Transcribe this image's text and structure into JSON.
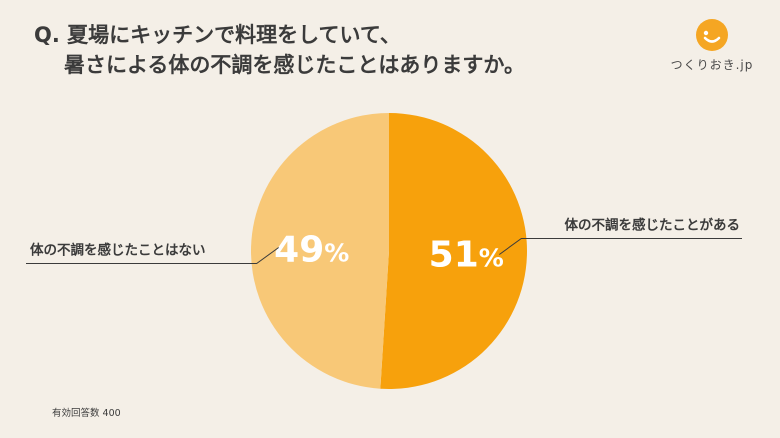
{
  "title": {
    "line1": "Q. 夏場にキッチンで料理をしていて、",
    "line2": "暑さによる体の不調を感じたことはありますか。"
  },
  "logo": {
    "text": "つくりおき.jp",
    "icon": "smile-face-icon",
    "color": "#f5a623"
  },
  "footnote": "有効回答数 400",
  "chart_data": {
    "type": "pie",
    "title": "Q. 夏場にキッチンで料理をしていて、暑さによる体の不調を感じたことはありますか。",
    "slices": [
      {
        "label": "体の不調を感じたことがある",
        "value": 51,
        "display": "51",
        "color": "#f7a10c"
      },
      {
        "label": "体の不調を感じたことはない",
        "value": 49,
        "display": "49",
        "color": "#f8c877"
      }
    ],
    "unit": "%",
    "start": "top",
    "direction": "clockwise"
  }
}
